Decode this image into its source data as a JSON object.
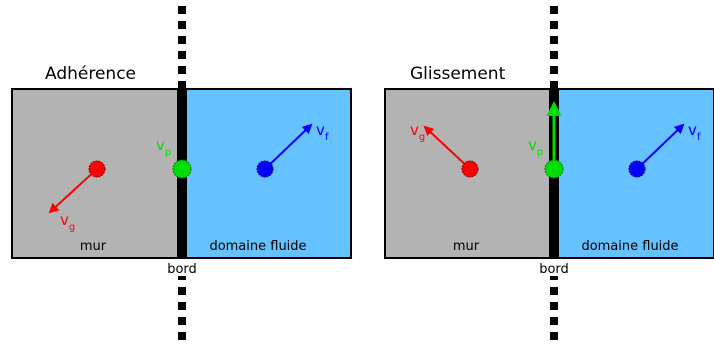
{
  "colors": {
    "wall": "#b3b3b3",
    "fluid": "#66c2ff",
    "wall_particle": "#ff0000",
    "boundary_particle": "#00dd00",
    "fluid_particle": "#0000ff",
    "boundary": "#000000"
  },
  "panels": [
    {
      "title": "Adhérence",
      "wall_label": "mur",
      "fluid_label": "domaine fluide",
      "boundary_label": "bord",
      "vectors": {
        "wall": {
          "main": "v",
          "sub": "g"
        },
        "boundary": {
          "main": "v",
          "sub": "p"
        },
        "fluid": {
          "main": "v",
          "sub": "f"
        }
      }
    },
    {
      "title": "Glissement",
      "wall_label": "mur",
      "fluid_label": "domaine fluide",
      "boundary_label": "bord",
      "vectors": {
        "wall": {
          "main": "v",
          "sub": "g"
        },
        "boundary": {
          "main": "v",
          "sub": "p"
        },
        "fluid": {
          "main": "v",
          "sub": "f"
        }
      }
    }
  ]
}
